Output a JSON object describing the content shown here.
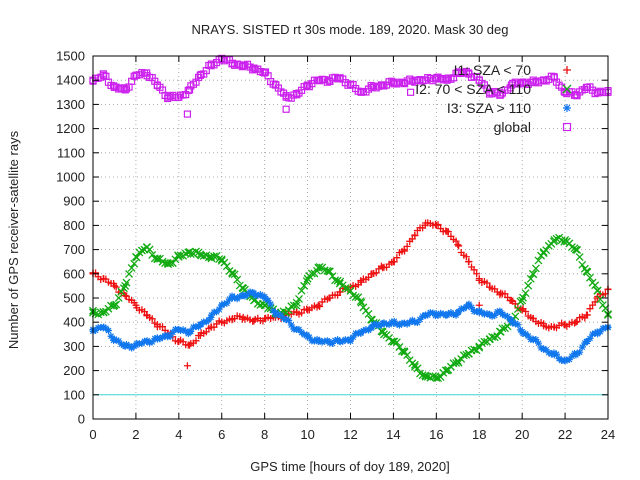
{
  "chart_data": {
    "type": "scatter",
    "title": "NRAYS. SISTED rt 30s mode. 189, 2020. Mask 30 deg",
    "xlabel": "GPS time [hours of doy 189, 2020]",
    "ylabel": "Number of GPS receiver-satellite rays",
    "xlim": [
      0,
      24
    ],
    "ylim": [
      0,
      1500
    ],
    "xticks": [
      0,
      2,
      4,
      6,
      8,
      10,
      12,
      14,
      16,
      18,
      20,
      22,
      24
    ],
    "yticks": [
      0,
      100,
      200,
      300,
      400,
      500,
      600,
      700,
      800,
      900,
      1000,
      1100,
      1200,
      1300,
      1400,
      1500
    ],
    "grid": true,
    "reference_line": {
      "y": 100,
      "color": "#40d8d8"
    },
    "legend_position": "top-right",
    "series": [
      {
        "name": "I1: SZA < 70",
        "color": "#ee1111",
        "marker": "+",
        "x": [
          0,
          0.5,
          1,
          1.5,
          2,
          2.5,
          3,
          3.5,
          4,
          4.5,
          5,
          5.5,
          6,
          6.5,
          7,
          7.5,
          8,
          8.5,
          9,
          9.5,
          10,
          10.5,
          11,
          11.5,
          12,
          12.5,
          13,
          13.5,
          14,
          14.5,
          15,
          15.5,
          16,
          16.5,
          17,
          17.5,
          18,
          18.5,
          19,
          19.5,
          20,
          20.5,
          21,
          21.5,
          22,
          22.5,
          23,
          23.5,
          24
        ],
        "y": [
          600,
          580,
          550,
          510,
          470,
          430,
          390,
          355,
          320,
          305,
          345,
          380,
          400,
          415,
          420,
          405,
          415,
          420,
          430,
          440,
          450,
          470,
          500,
          525,
          545,
          565,
          600,
          625,
          650,
          700,
          760,
          810,
          800,
          775,
          720,
          650,
          580,
          545,
          520,
          490,
          450,
          415,
          385,
          380,
          390,
          400,
          430,
          500,
          535
        ],
        "outliers": [
          [
            4.4,
            220
          ],
          [
            18.0,
            470
          ]
        ]
      },
      {
        "name": "I2: 70 < SZA < 110",
        "color": "#11aa11",
        "marker": "x",
        "x": [
          0,
          0.5,
          1,
          1.5,
          2,
          2.5,
          3,
          3.5,
          4,
          4.5,
          5,
          5.5,
          6,
          6.5,
          7,
          7.5,
          8,
          8.5,
          9,
          9.5,
          10,
          10.5,
          11,
          11.5,
          12,
          12.5,
          13,
          13.5,
          14,
          14.5,
          15,
          15.5,
          16,
          16.5,
          17,
          17.5,
          18,
          18.5,
          19,
          19.5,
          20,
          20.5,
          21,
          21.5,
          22,
          22.5,
          23,
          23.5,
          24
        ],
        "y": [
          440,
          440,
          470,
          550,
          670,
          710,
          660,
          640,
          670,
          690,
          680,
          670,
          660,
          600,
          540,
          490,
          470,
          440,
          440,
          480,
          580,
          625,
          610,
          560,
          530,
          480,
          410,
          360,
          320,
          280,
          215,
          175,
          170,
          200,
          240,
          270,
          300,
          330,
          360,
          400,
          490,
          600,
          690,
          740,
          740,
          700,
          610,
          530,
          430
        ]
      },
      {
        "name": "I3: SZA > 110",
        "color": "#1177ee",
        "marker": "*",
        "x": [
          0,
          0.5,
          1,
          1.5,
          2,
          2.5,
          3,
          3.5,
          4,
          4.5,
          5,
          5.5,
          6,
          6.5,
          7,
          7.5,
          8,
          8.5,
          9,
          9.5,
          10,
          10.5,
          11,
          11.5,
          12,
          12.5,
          13,
          13.5,
          14,
          14.5,
          15,
          15.5,
          16,
          16.5,
          17,
          17.5,
          18,
          18.5,
          19,
          19.5,
          20,
          20.5,
          21,
          21.5,
          22,
          22.5,
          23,
          23.5,
          24
        ],
        "y": [
          370,
          380,
          330,
          300,
          305,
          320,
          330,
          345,
          370,
          360,
          390,
          420,
          470,
          500,
          510,
          520,
          505,
          440,
          410,
          370,
          340,
          320,
          320,
          320,
          330,
          360,
          380,
          395,
          395,
          395,
          400,
          430,
          435,
          430,
          440,
          470,
          440,
          430,
          440,
          410,
          360,
          330,
          290,
          265,
          240,
          265,
          320,
          360,
          380
        ]
      },
      {
        "name": "global",
        "color": "#cc22ee",
        "marker": "square",
        "x": [
          0,
          0.5,
          1,
          1.5,
          2,
          2.5,
          3,
          3.5,
          4,
          4.5,
          5,
          5.5,
          6,
          6.5,
          7,
          7.5,
          8,
          8.5,
          9,
          9.5,
          10,
          10.5,
          11,
          11.5,
          12,
          12.5,
          13,
          13.5,
          14,
          14.5,
          15,
          15.5,
          16,
          16.5,
          17,
          17.5,
          18,
          18.5,
          19,
          19.5,
          20,
          20.5,
          21,
          21.5,
          22,
          22.5,
          23,
          23.5,
          24
        ],
        "y": [
          1400,
          1420,
          1370,
          1360,
          1420,
          1430,
          1380,
          1330,
          1330,
          1360,
          1420,
          1460,
          1490,
          1470,
          1460,
          1450,
          1430,
          1380,
          1330,
          1340,
          1380,
          1400,
          1400,
          1410,
          1380,
          1350,
          1370,
          1380,
          1390,
          1390,
          1400,
          1400,
          1410,
          1400,
          1430,
          1430,
          1400,
          1350,
          1340,
          1380,
          1390,
          1390,
          1400,
          1410,
          1350,
          1340,
          1370,
          1350,
          1350
        ],
        "outliers": [
          [
            4.4,
            1260
          ],
          [
            9.0,
            1280
          ],
          [
            14.8,
            1350
          ]
        ]
      }
    ]
  }
}
